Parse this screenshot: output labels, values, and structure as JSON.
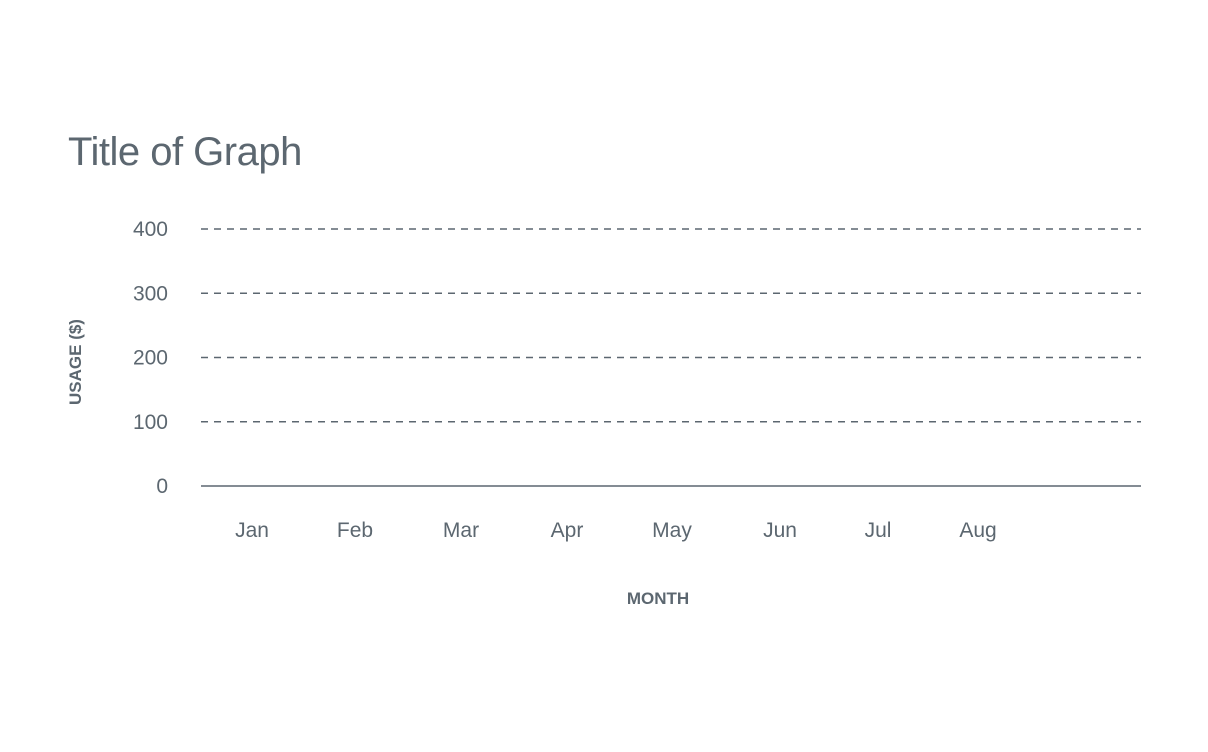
{
  "chart_data": {
    "type": "bar",
    "title": "Title of Graph",
    "xlabel": "MONTH",
    "ylabel": "USAGE ($)",
    "categories": [
      "Jan",
      "Feb",
      "Mar",
      "Apr",
      "May",
      "Jun",
      "Jul",
      "Aug"
    ],
    "series": [],
    "yticks": [
      "0",
      "100",
      "200",
      "300",
      "400"
    ],
    "ylim": [
      0,
      400
    ],
    "grid": true,
    "legend": "none"
  },
  "colors": {
    "text": "#5c6770",
    "gridline": "#5c6770",
    "axis": "#5c6770"
  }
}
